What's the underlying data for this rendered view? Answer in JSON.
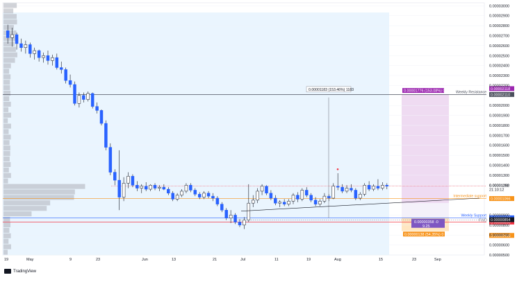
{
  "chart_data": {
    "type": "candlestick",
    "title": "",
    "y_ticks": [
      "0.00003000",
      "0.00002900",
      "0.00002800",
      "0.00002700",
      "0.00002600",
      "0.00002500",
      "0.00002400",
      "0.00002300",
      "0.00002200",
      "0.00002000",
      "0.00001900",
      "0.00001800",
      "0.00001700",
      "0.00001600",
      "0.00001500",
      "0.00001400",
      "0.00001300",
      "0.00001200",
      "0.00000900",
      "0.00000800",
      "0.00000700",
      "0.00000600",
      "0.00000500"
    ],
    "x_ticks": [
      "19",
      "May",
      "9",
      "23",
      "Jun",
      "13",
      "21",
      "Jul",
      "11",
      "19",
      "Aug",
      "15",
      "23",
      "Sep"
    ],
    "ylim": [
      5e-06,
      3.03e-05
    ],
    "current_price": "0.00001192",
    "current_time": "21:10:12",
    "levels": [
      {
        "name": "Weekly Resistance",
        "price": "0.00002110",
        "value": 2.11e-05,
        "color": "#4a4f5c"
      },
      {
        "name": "Intermediate support",
        "price": "0.00001066",
        "value": 1.066e-05,
        "color": "#f7931a"
      },
      {
        "name": "Weekly Support",
        "price": "0.00000873",
        "value": 8.73e-06,
        "color": "#2962ff"
      },
      {
        "name": "",
        "price": "0.00000830",
        "value": 8.3e-06,
        "color": "#f23645"
      }
    ],
    "other_price_tags": [
      "0.00000854",
      "0.00000496"
    ],
    "mid_label": "FWD",
    "measure_label": "0.00001183 (153.46%) 1183",
    "target_label": "0.00001776 (153.08%) 0",
    "target_tag": "0.00002118",
    "lower_label_1": "0.00000358 -0",
    "lower_label_2": "9.25",
    "lower_label_3": "0.00000138 (54.35%) 0",
    "candles": [
      {
        "o": 2.75e-05,
        "h": 2.81e-05,
        "l": 2.62e-05,
        "c": 2.68e-05
      },
      {
        "o": 2.68e-05,
        "h": 2.78e-05,
        "l": 2.59e-05,
        "c": 2.71e-05
      },
      {
        "o": 2.71e-05,
        "h": 2.73e-05,
        "l": 2.56e-05,
        "c": 2.62e-05
      },
      {
        "o": 2.62e-05,
        "h": 2.67e-05,
        "l": 2.54e-05,
        "c": 2.58e-05
      },
      {
        "o": 2.58e-05,
        "h": 2.65e-05,
        "l": 2.52e-05,
        "c": 2.61e-05
      },
      {
        "o": 2.61e-05,
        "h": 2.63e-05,
        "l": 2.48e-05,
        "c": 2.52e-05
      },
      {
        "o": 2.52e-05,
        "h": 2.58e-05,
        "l": 2.46e-05,
        "c": 2.55e-05
      },
      {
        "o": 2.55e-05,
        "h": 2.56e-05,
        "l": 2.44e-05,
        "c": 2.48e-05
      },
      {
        "o": 2.48e-05,
        "h": 2.53e-05,
        "l": 2.43e-05,
        "c": 2.5e-05
      },
      {
        "o": 2.5e-05,
        "h": 2.55e-05,
        "l": 2.41e-05,
        "c": 2.45e-05
      },
      {
        "o": 2.45e-05,
        "h": 2.51e-05,
        "l": 2.4e-05,
        "c": 2.48e-05
      },
      {
        "o": 2.48e-05,
        "h": 2.52e-05,
        "l": 2.36e-05,
        "c": 2.38e-05
      },
      {
        "o": 2.38e-05,
        "h": 2.44e-05,
        "l": 2.32e-05,
        "c": 2.36e-05
      },
      {
        "o": 2.36e-05,
        "h": 2.38e-05,
        "l": 2.22e-05,
        "c": 2.25e-05
      },
      {
        "o": 2.25e-05,
        "h": 2.31e-05,
        "l": 2.18e-05,
        "c": 2.21e-05
      },
      {
        "o": 2.21e-05,
        "h": 2.24e-05,
        "l": 2e-05,
        "c": 2.02e-05
      },
      {
        "o": 2.02e-05,
        "h": 2.13e-05,
        "l": 1.98e-05,
        "c": 2.1e-05
      },
      {
        "o": 2.1e-05,
        "h": 2.13e-05,
        "l": 2.03e-05,
        "c": 2.06e-05
      },
      {
        "o": 2.06e-05,
        "h": 2.14e-05,
        "l": 2.04e-05,
        "c": 2.12e-05
      },
      {
        "o": 2.12e-05,
        "h": 2.13e-05,
        "l": 1.97e-05,
        "c": 1.99e-05
      },
      {
        "o": 1.99e-05,
        "h": 2.03e-05,
        "l": 1.92e-05,
        "c": 1.95e-05
      },
      {
        "o": 1.95e-05,
        "h": 1.96e-05,
        "l": 1.8e-05,
        "c": 1.82e-05
      },
      {
        "o": 1.82e-05,
        "h": 1.85e-05,
        "l": 1.55e-05,
        "c": 1.58e-05
      },
      {
        "o": 1.58e-05,
        "h": 1.62e-05,
        "l": 1.3e-05,
        "c": 1.33e-05
      },
      {
        "o": 1.33e-05,
        "h": 1.36e-05,
        "l": 1.2e-05,
        "c": 1.25e-05
      },
      {
        "o": 1.25e-05,
        "h": 1.55e-05,
        "l": 9.5e-06,
        "c": 1.08e-05
      },
      {
        "o": 1.08e-05,
        "h": 1.28e-05,
        "l": 1.04e-05,
        "c": 1.22e-05
      },
      {
        "o": 1.22e-05,
        "h": 1.33e-05,
        "l": 1.17e-05,
        "c": 1.29e-05
      },
      {
        "o": 1.29e-05,
        "h": 1.31e-05,
        "l": 1.18e-05,
        "c": 1.2e-05
      },
      {
        "o": 1.2e-05,
        "h": 1.24e-05,
        "l": 1.14e-05,
        "c": 1.17e-05
      },
      {
        "o": 1.17e-05,
        "h": 1.21e-05,
        "l": 1.12e-05,
        "c": 1.19e-05
      },
      {
        "o": 1.19e-05,
        "h": 1.23e-05,
        "l": 1.14e-05,
        "c": 1.16e-05
      },
      {
        "o": 1.16e-05,
        "h": 1.21e-05,
        "l": 1.14e-05,
        "c": 1.2e-05
      },
      {
        "o": 1.2e-05,
        "h": 1.22e-05,
        "l": 1.15e-05,
        "c": 1.17e-05
      },
      {
        "o": 1.17e-05,
        "h": 1.2e-05,
        "l": 1.14e-05,
        "c": 1.18e-05
      },
      {
        "o": 1.18e-05,
        "h": 1.21e-05,
        "l": 1.15e-05,
        "c": 1.16e-05
      },
      {
        "o": 1.16e-05,
        "h": 1.18e-05,
        "l": 1.1e-05,
        "c": 1.12e-05
      },
      {
        "o": 1.12e-05,
        "h": 1.14e-05,
        "l": 1.04e-05,
        "c": 1.06e-05
      },
      {
        "o": 1.06e-05,
        "h": 1.12e-05,
        "l": 1.04e-05,
        "c": 1.1e-05
      },
      {
        "o": 1.1e-05,
        "h": 1.16e-05,
        "l": 1.08e-05,
        "c": 1.14e-05
      },
      {
        "o": 1.14e-05,
        "h": 1.22e-05,
        "l": 1.12e-05,
        "c": 1.2e-05
      },
      {
        "o": 1.2e-05,
        "h": 1.22e-05,
        "l": 1.13e-05,
        "c": 1.15e-05
      },
      {
        "o": 1.15e-05,
        "h": 1.17e-05,
        "l": 1.09e-05,
        "c": 1.11e-05
      },
      {
        "o": 1.11e-05,
        "h": 1.13e-05,
        "l": 1.06e-05,
        "c": 1.08e-05
      },
      {
        "o": 1.08e-05,
        "h": 1.14e-05,
        "l": 1.06e-05,
        "c": 1.12e-05
      },
      {
        "o": 1.12e-05,
        "h": 1.14e-05,
        "l": 1.07e-05,
        "c": 1.09e-05
      },
      {
        "o": 1.09e-05,
        "h": 1.12e-05,
        "l": 1.04e-05,
        "c": 1.07e-05
      },
      {
        "o": 1.07e-05,
        "h": 1.09e-05,
        "l": 9.9e-06,
        "c": 1.01e-05
      },
      {
        "o": 1.01e-05,
        "h": 1.03e-05,
        "l": 9.3e-06,
        "c": 9.5e-06
      },
      {
        "o": 9.5e-06,
        "h": 9.7e-06,
        "l": 8.5e-06,
        "c": 8.7e-06
      },
      {
        "o": 8.7e-06,
        "h": 9.5e-06,
        "l": 8.2e-06,
        "c": 9e-06
      },
      {
        "o": 9e-06,
        "h": 9.2e-06,
        "l": 8.1e-06,
        "c": 8.3e-06
      },
      {
        "o": 8.3e-06,
        "h": 8.6e-06,
        "l": 7.8e-06,
        "c": 8e-06
      },
      {
        "o": 8e-06,
        "h": 8.8e-06,
        "l": 7.6e-06,
        "c": 8.5e-06
      },
      {
        "o": 8.5e-06,
        "h": 1.21e-05,
        "l": 8.3e-06,
        "c": 1.02e-05
      },
      {
        "o": 1.02e-05,
        "h": 1.1e-05,
        "l": 9.8e-06,
        "c": 1.05e-05
      },
      {
        "o": 1.05e-05,
        "h": 1.17e-05,
        "l": 1.02e-05,
        "c": 1.14e-05
      },
      {
        "o": 1.14e-05,
        "h": 1.21e-05,
        "l": 1.1e-05,
        "c": 1.19e-05
      },
      {
        "o": 1.19e-05,
        "h": 1.2e-05,
        "l": 1.1e-05,
        "c": 1.12e-05
      },
      {
        "o": 1.12e-05,
        "h": 1.15e-05,
        "l": 1.05e-05,
        "c": 1.07e-05
      },
      {
        "o": 1.07e-05,
        "h": 1.1e-05,
        "l": 1e-05,
        "c": 1.02e-05
      },
      {
        "o": 1.02e-05,
        "h": 1.05e-05,
        "l": 9.8e-06,
        "c": 1.03e-05
      },
      {
        "o": 1.03e-05,
        "h": 1.06e-05,
        "l": 9.9e-06,
        "c": 1.01e-05
      },
      {
        "o": 1.01e-05,
        "h": 1.06e-05,
        "l": 9.9e-06,
        "c": 1.04e-05
      },
      {
        "o": 1.04e-05,
        "h": 1.12e-05,
        "l": 1.01e-05,
        "c": 1.1e-05
      },
      {
        "o": 1.1e-05,
        "h": 1.13e-05,
        "l": 1.03e-05,
        "c": 1.06e-05
      },
      {
        "o": 1.06e-05,
        "h": 1.17e-05,
        "l": 1.04e-05,
        "c": 1.15e-05
      },
      {
        "o": 1.15e-05,
        "h": 1.18e-05,
        "l": 1.08e-05,
        "c": 1.1e-05
      },
      {
        "o": 1.1e-05,
        "h": 1.12e-05,
        "l": 1.03e-05,
        "c": 1.05e-05
      },
      {
        "o": 1.05e-05,
        "h": 1.08e-05,
        "l": 9.9e-06,
        "c": 1.01e-05
      },
      {
        "o": 1.01e-05,
        "h": 1.06e-05,
        "l": 9.9e-06,
        "c": 1.04e-05
      },
      {
        "o": 1.04e-05,
        "h": 1.12e-05,
        "l": 1.02e-05,
        "c": 1.09e-05
      },
      {
        "o": 1.09e-05,
        "h": 1.11e-05,
        "l": 1.04e-05,
        "c": 1.07e-05
      },
      {
        "o": 1.07e-05,
        "h": 1.22e-05,
        "l": 1.06e-05,
        "c": 1.19e-05
      },
      {
        "o": 1.19e-05,
        "h": 1.32e-05,
        "l": 1.15e-05,
        "c": 1.18e-05
      },
      {
        "o": 1.18e-05,
        "h": 1.21e-05,
        "l": 1.12e-05,
        "c": 1.14e-05
      },
      {
        "o": 1.14e-05,
        "h": 1.2e-05,
        "l": 1.12e-05,
        "c": 1.17e-05
      },
      {
        "o": 1.17e-05,
        "h": 1.21e-05,
        "l": 1.13e-05,
        "c": 1.15e-05
      },
      {
        "o": 1.15e-05,
        "h": 1.17e-05,
        "l": 1.05e-05,
        "c": 1.07e-05
      },
      {
        "o": 1.07e-05,
        "h": 1.13e-05,
        "l": 1.05e-05,
        "c": 1.11e-05
      },
      {
        "o": 1.11e-05,
        "h": 1.22e-05,
        "l": 1.09e-05,
        "c": 1.2e-05
      },
      {
        "o": 1.2e-05,
        "h": 1.24e-05,
        "l": 1.14e-05,
        "c": 1.16e-05
      },
      {
        "o": 1.16e-05,
        "h": 1.21e-05,
        "l": 1.14e-05,
        "c": 1.19e-05
      },
      {
        "o": 1.19e-05,
        "h": 1.26e-05,
        "l": 1.15e-05,
        "c": 1.17e-05
      },
      {
        "o": 1.17e-05,
        "h": 1.23e-05,
        "l": 1.15e-05,
        "c": 1.2e-05
      },
      {
        "o": 1.2e-05,
        "h": 1.22e-05,
        "l": 1.16e-05,
        "c": 1.19e-05
      }
    ]
  },
  "footer": {
    "brand": "TradingView"
  },
  "colors": {
    "up": "#ffffff",
    "down": "#2962ff",
    "wick": "#131722",
    "profile": "#b2b5be"
  }
}
